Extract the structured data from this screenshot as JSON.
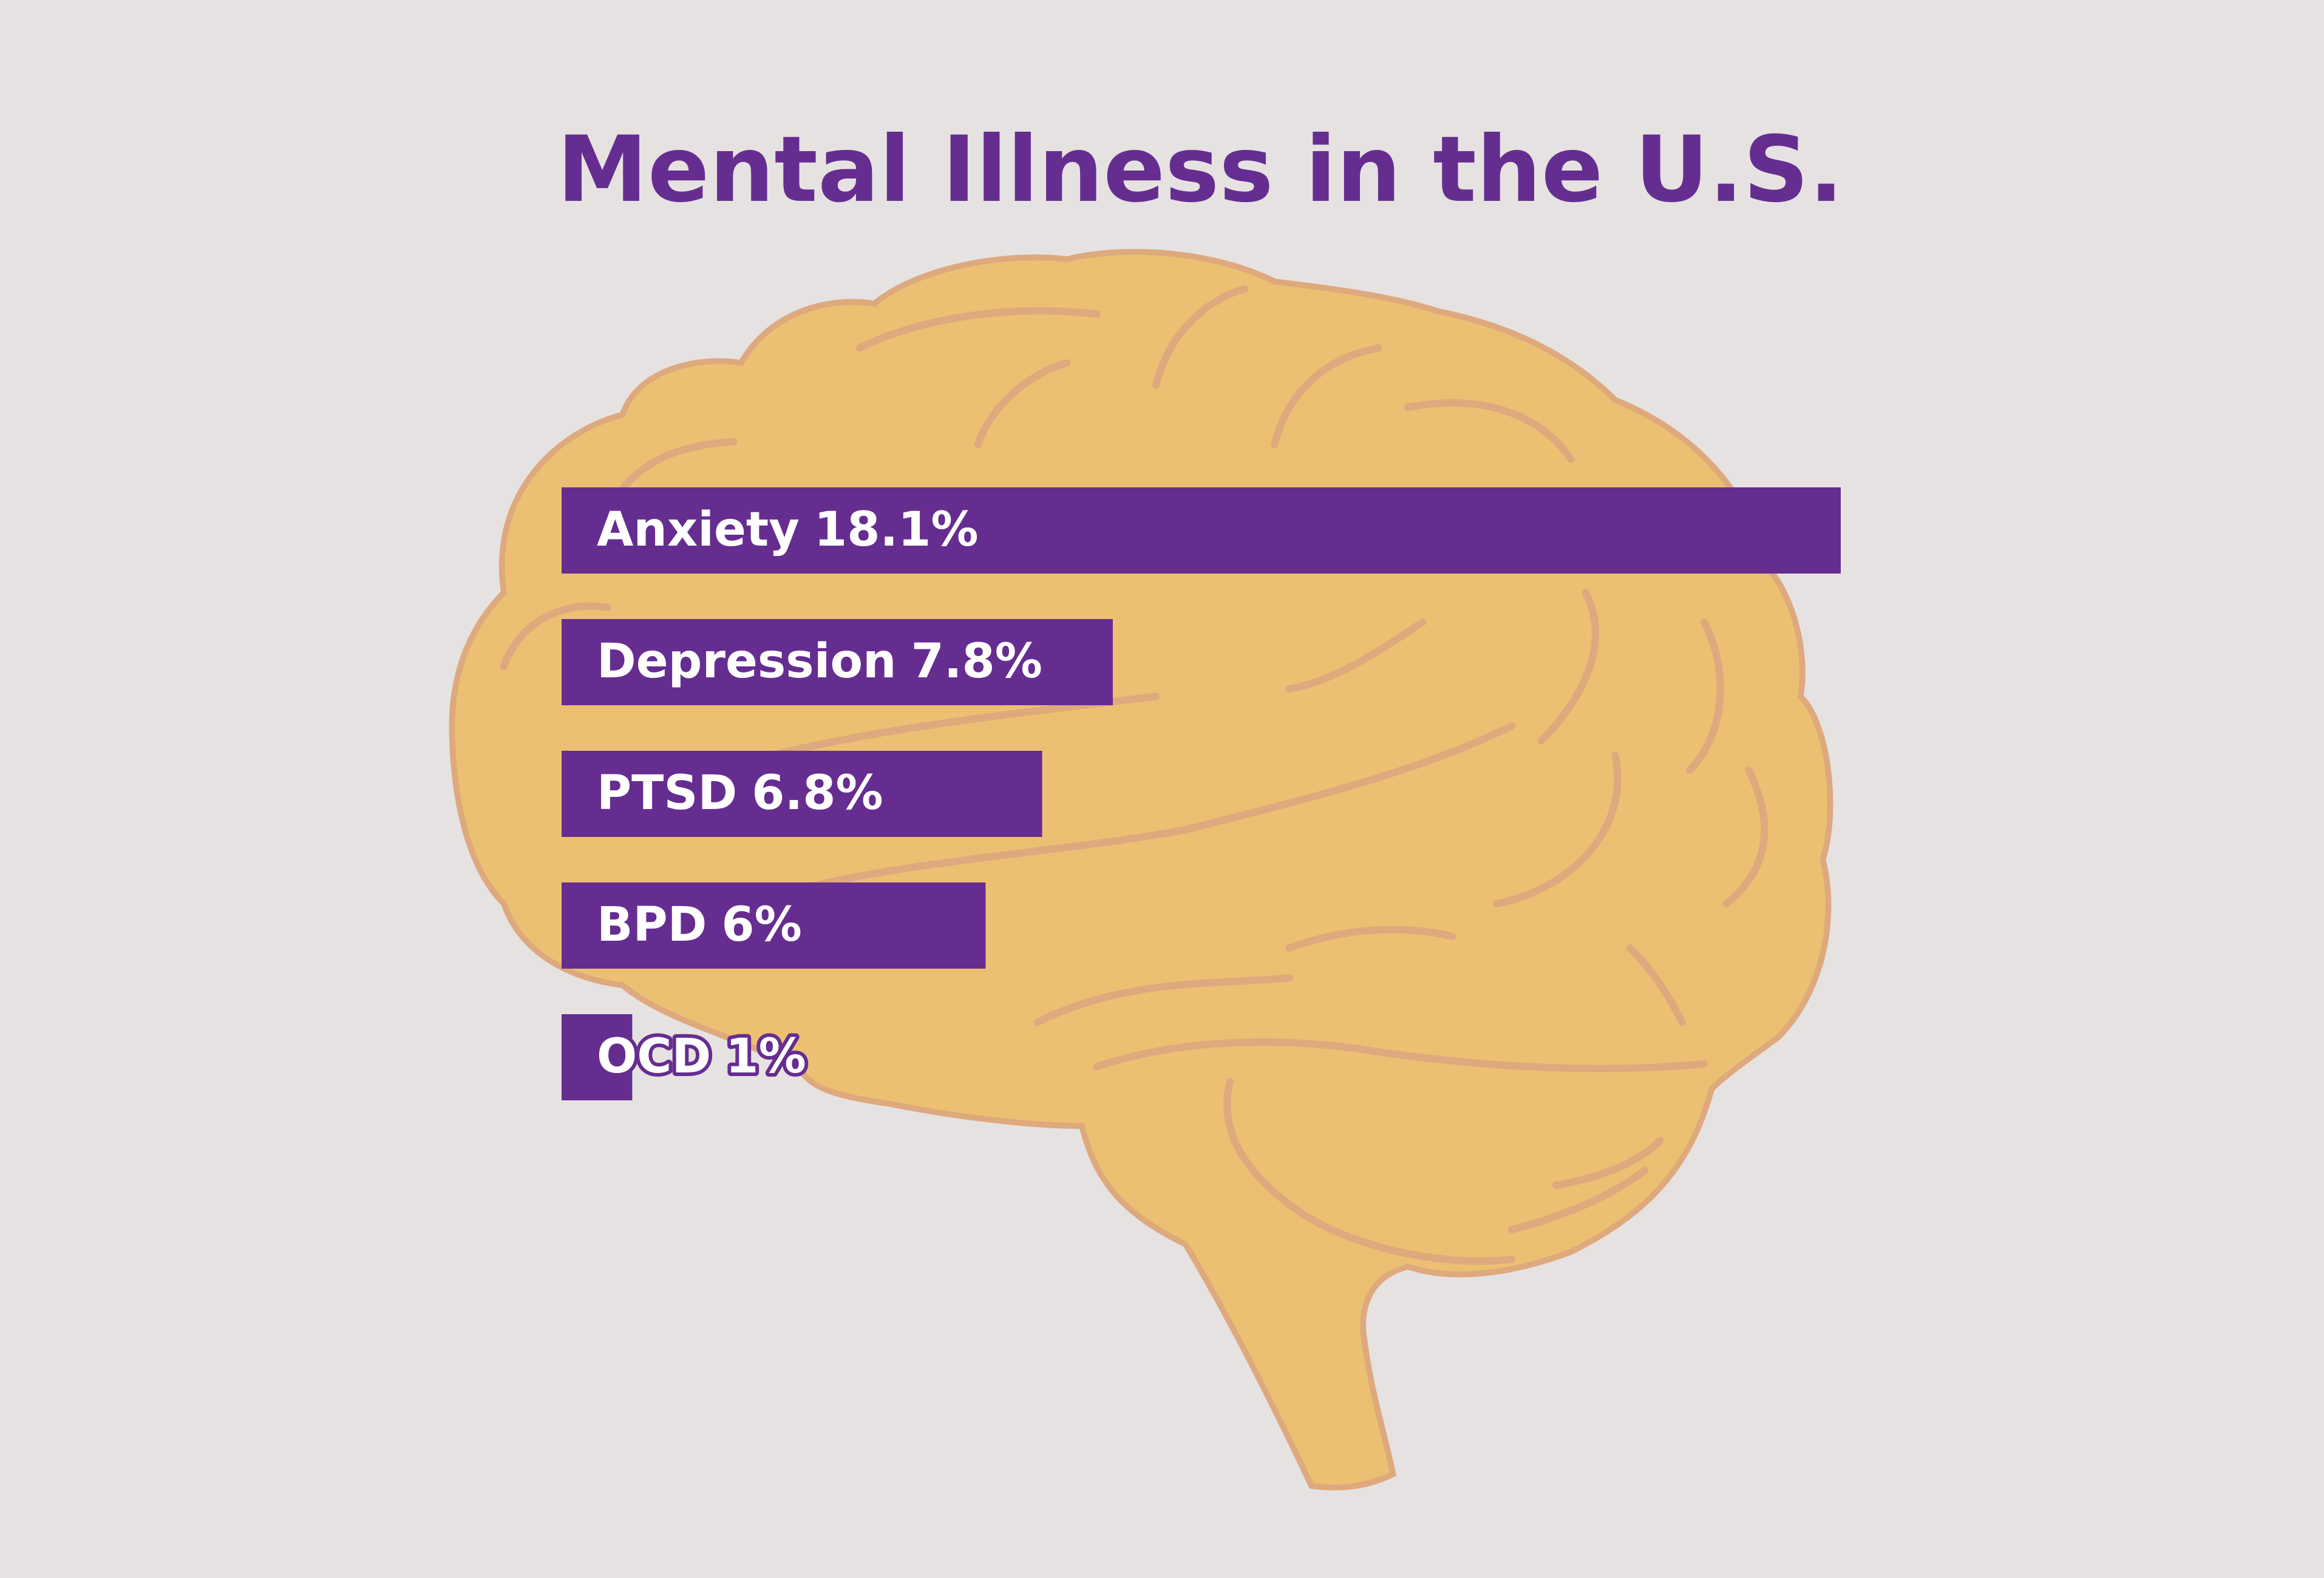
{
  "chart_data": {
    "type": "bar",
    "orientation": "horizontal",
    "title": "Mental Illness in the U.S.",
    "categories": [
      "Anxiety",
      "Depression",
      "PTSD",
      "BPD",
      "OCD"
    ],
    "values": [
      18.1,
      7.8,
      6.8,
      6,
      1
    ],
    "value_labels": [
      "18.1%",
      "7.8%",
      "6.8%",
      "6%",
      "1%"
    ],
    "color": "#662d91"
  }
}
